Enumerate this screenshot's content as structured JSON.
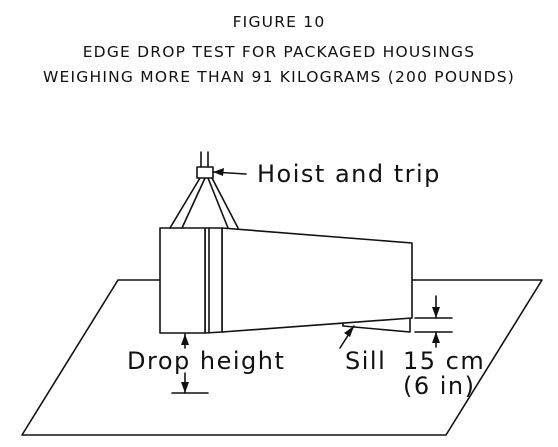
{
  "figure": {
    "number_label": "FIGURE 10",
    "title_line1": "EDGE DROP TEST FOR PACKAGED HOUSINGS",
    "title_line2": "WEIGHING MORE THAN 91 KILOGRAMS (200 POUNDS)"
  },
  "labels": {
    "hoist": "Hoist and trip",
    "drop_height": "Drop height",
    "sill": "Sill",
    "sill_height_metric": "15 cm",
    "sill_height_imperial": "(6 in)"
  },
  "colors": {
    "line": "#111111",
    "background": "#ffffff"
  }
}
